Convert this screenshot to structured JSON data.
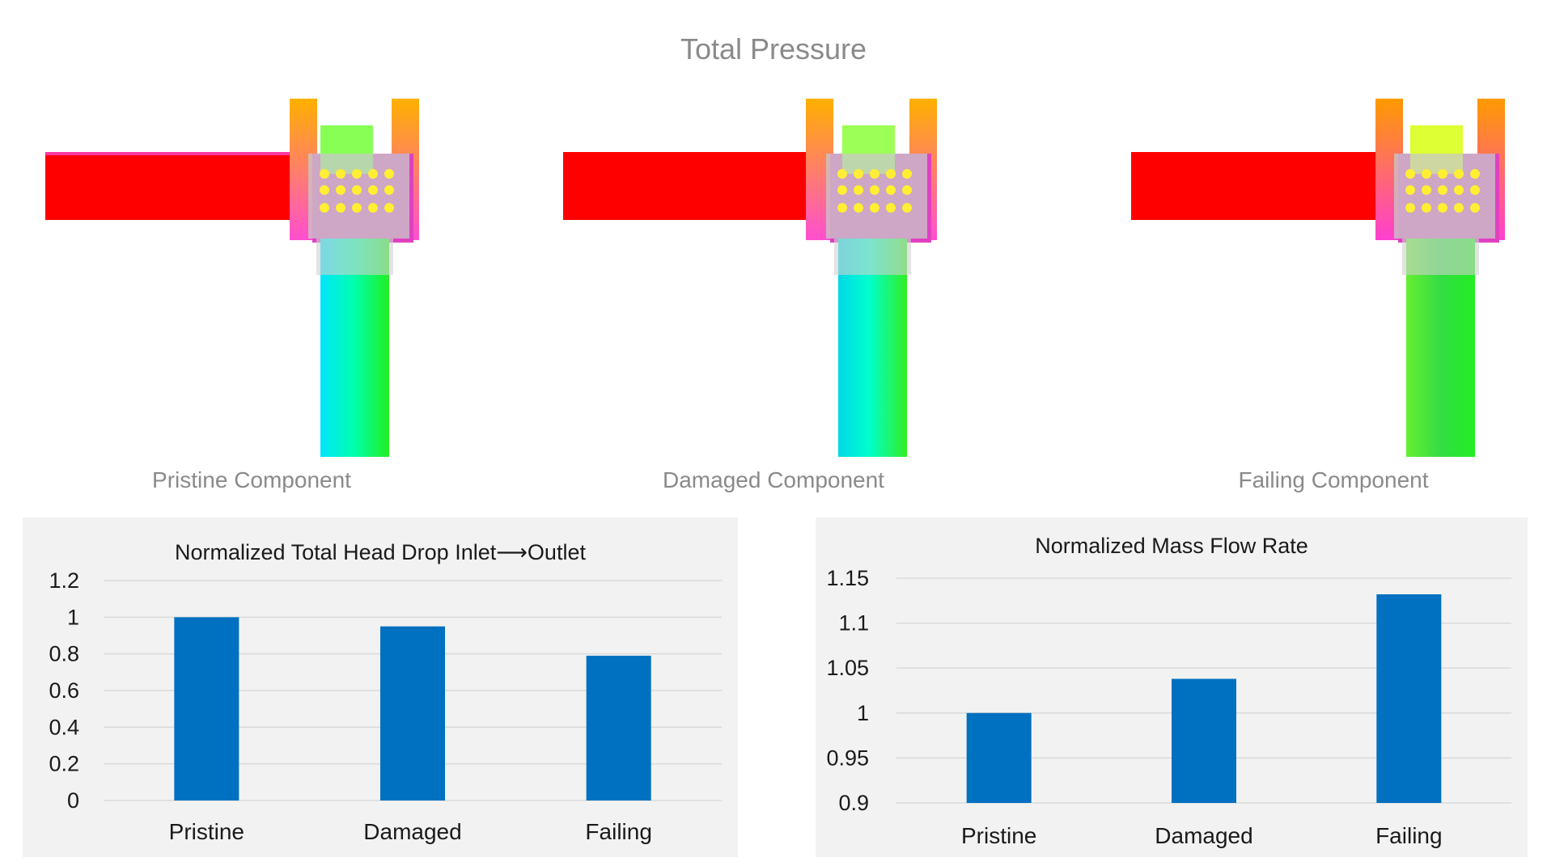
{
  "figure": {
    "title": "Total Pressure"
  },
  "panels": [
    {
      "label": "Pristine Component"
    },
    {
      "label": "Damaged Component"
    },
    {
      "label": "Failing Component"
    }
  ],
  "colors": {
    "bar": "#0070c0",
    "grid": "#d9d9d9",
    "chart_background": "#f2f2f2"
  },
  "chart_data": [
    {
      "type": "bar",
      "title": "Normalized Total Head Drop Inlet⟶Outlet",
      "categories": [
        "Pristine",
        "Damaged",
        "Failing"
      ],
      "values": [
        1.0,
        0.95,
        0.79
      ],
      "ylim": [
        0,
        1.2
      ],
      "yticks": [
        "0",
        "0.2",
        "0.4",
        "0.6",
        "0.8",
        "1",
        "1.2"
      ],
      "ytick_values": [
        0,
        0.2,
        0.4,
        0.6,
        0.8,
        1.0,
        1.2
      ],
      "grid": true,
      "legend": "none"
    },
    {
      "type": "bar",
      "title": "Normalized Mass Flow Rate",
      "categories": [
        "Pristine",
        "Damaged",
        "Failing"
      ],
      "values": [
        1.0,
        1.038,
        1.132
      ],
      "ylim": [
        0.9,
        1.15
      ],
      "yticks": [
        "0.9",
        "0.95",
        "1",
        "1.05",
        "1.1",
        "1.15"
      ],
      "ytick_values": [
        0.9,
        0.95,
        1.0,
        1.05,
        1.1,
        1.15
      ],
      "grid": true,
      "legend": "none"
    }
  ]
}
